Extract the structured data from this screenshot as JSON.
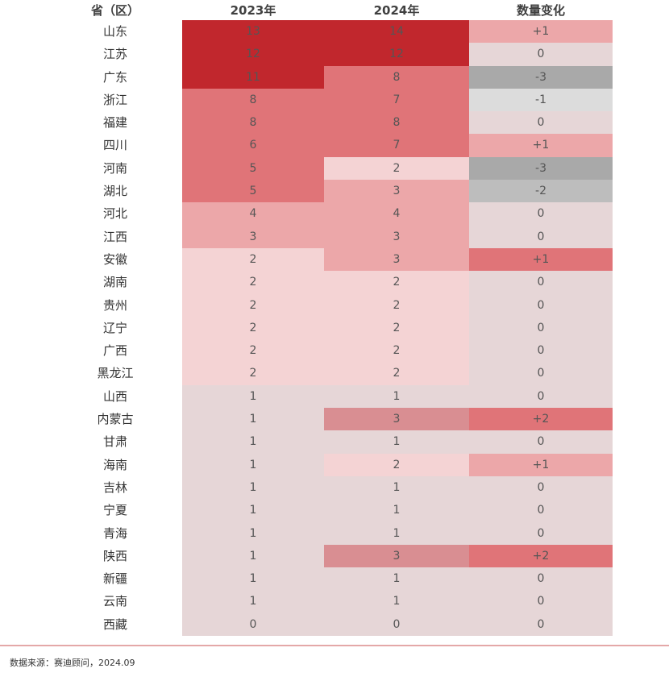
{
  "chart_data": {
    "type": "table",
    "headers": [
      "省（区）",
      "2023年",
      "2024年",
      "数量变化"
    ],
    "palette": {
      "d": "#C1272D",
      "m": "#E07478",
      "s": "#D98E92",
      "l": "#ECA7A9",
      "p": "#F4D3D4",
      "z": "#E6D6D7",
      "g1": "#DCDCDC",
      "g2": "#BDBDBD",
      "g3": "#A9A9A9"
    },
    "rows": [
      {
        "region": "山东",
        "y2023": "13",
        "y2024": "14",
        "change": "+1",
        "colors": [
          "d",
          "d",
          "l"
        ]
      },
      {
        "region": "江苏",
        "y2023": "12",
        "y2024": "12",
        "change": "0",
        "colors": [
          "d",
          "d",
          "z"
        ]
      },
      {
        "region": "广东",
        "y2023": "11",
        "y2024": "8",
        "change": "-3",
        "colors": [
          "d",
          "m",
          "g3"
        ]
      },
      {
        "region": "浙江",
        "y2023": "8",
        "y2024": "7",
        "change": "-1",
        "colors": [
          "m",
          "m",
          "g1"
        ]
      },
      {
        "region": "福建",
        "y2023": "8",
        "y2024": "8",
        "change": "0",
        "colors": [
          "m",
          "m",
          "z"
        ]
      },
      {
        "region": "四川",
        "y2023": "6",
        "y2024": "7",
        "change": "+1",
        "colors": [
          "m",
          "m",
          "l"
        ]
      },
      {
        "region": "河南",
        "y2023": "5",
        "y2024": "2",
        "change": "-3",
        "colors": [
          "m",
          "p",
          "g3"
        ]
      },
      {
        "region": "湖北",
        "y2023": "5",
        "y2024": "3",
        "change": "-2",
        "colors": [
          "m",
          "l",
          "g2"
        ]
      },
      {
        "region": "河北",
        "y2023": "4",
        "y2024": "4",
        "change": "0",
        "colors": [
          "l",
          "l",
          "z"
        ]
      },
      {
        "region": "江西",
        "y2023": "3",
        "y2024": "3",
        "change": "0",
        "colors": [
          "l",
          "l",
          "z"
        ]
      },
      {
        "region": "安徽",
        "y2023": "2",
        "y2024": "3",
        "change": "+1",
        "colors": [
          "p",
          "l",
          "m"
        ]
      },
      {
        "region": "湖南",
        "y2023": "2",
        "y2024": "2",
        "change": "0",
        "colors": [
          "p",
          "p",
          "z"
        ]
      },
      {
        "region": "贵州",
        "y2023": "2",
        "y2024": "2",
        "change": "0",
        "colors": [
          "p",
          "p",
          "z"
        ]
      },
      {
        "region": "辽宁",
        "y2023": "2",
        "y2024": "2",
        "change": "0",
        "colors": [
          "p",
          "p",
          "z"
        ]
      },
      {
        "region": "广西",
        "y2023": "2",
        "y2024": "2",
        "change": "0",
        "colors": [
          "p",
          "p",
          "z"
        ]
      },
      {
        "region": "黑龙江",
        "y2023": "2",
        "y2024": "2",
        "change": "0",
        "colors": [
          "p",
          "p",
          "z"
        ]
      },
      {
        "region": "山西",
        "y2023": "1",
        "y2024": "1",
        "change": "0",
        "colors": [
          "z",
          "z",
          "z"
        ]
      },
      {
        "region": "内蒙古",
        "y2023": "1",
        "y2024": "3",
        "change": "+2",
        "colors": [
          "z",
          "s",
          "m"
        ]
      },
      {
        "region": "甘肃",
        "y2023": "1",
        "y2024": "1",
        "change": "0",
        "colors": [
          "z",
          "z",
          "z"
        ]
      },
      {
        "region": "海南",
        "y2023": "1",
        "y2024": "2",
        "change": "+1",
        "colors": [
          "z",
          "p",
          "l"
        ]
      },
      {
        "region": "吉林",
        "y2023": "1",
        "y2024": "1",
        "change": "0",
        "colors": [
          "z",
          "z",
          "z"
        ]
      },
      {
        "region": "宁夏",
        "y2023": "1",
        "y2024": "1",
        "change": "0",
        "colors": [
          "z",
          "z",
          "z"
        ]
      },
      {
        "region": "青海",
        "y2023": "1",
        "y2024": "1",
        "change": "0",
        "colors": [
          "z",
          "z",
          "z"
        ]
      },
      {
        "region": "陕西",
        "y2023": "1",
        "y2024": "3",
        "change": "+2",
        "colors": [
          "z",
          "s",
          "m"
        ]
      },
      {
        "region": "新疆",
        "y2023": "1",
        "y2024": "1",
        "change": "0",
        "colors": [
          "z",
          "z",
          "z"
        ]
      },
      {
        "region": "云南",
        "y2023": "1",
        "y2024": "1",
        "change": "0",
        "colors": [
          "z",
          "z",
          "z"
        ]
      },
      {
        "region": "西藏",
        "y2023": "0",
        "y2024": "0",
        "change": "0",
        "colors": [
          "z",
          "z",
          "z"
        ]
      }
    ]
  },
  "footer": {
    "source": "数据来源：赛迪顾问，2024.09"
  }
}
